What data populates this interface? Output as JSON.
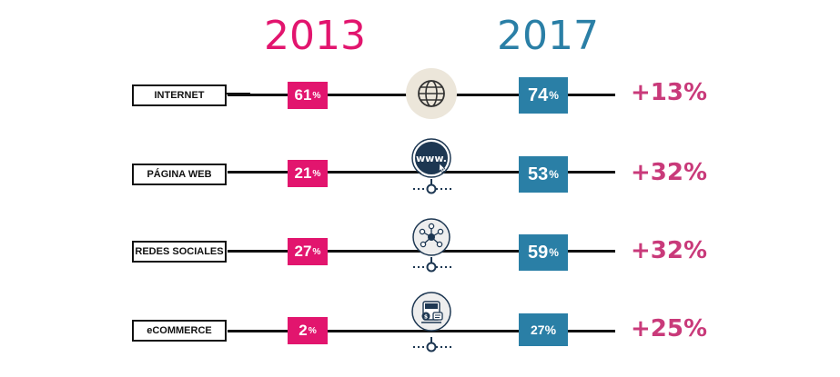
{
  "header": {
    "year_left": "2013",
    "year_right": "2017"
  },
  "colors": {
    "pink": "#e2156e",
    "blue": "#2a7fa6",
    "diff": "#c93a7a"
  },
  "rows": [
    {
      "label": "INTERNET",
      "v2013": "61",
      "v2017": "74",
      "pct_symbol": "%",
      "diff": "+13%",
      "icon": "globe-icon"
    },
    {
      "label": "PÁGINA WEB",
      "v2013": "21",
      "v2017": "53",
      "pct_symbol": "%",
      "diff": "+32%",
      "icon": "www-icon",
      "icon_text": "www."
    },
    {
      "label": "REDES SOCIALES",
      "v2013": "27",
      "v2017": "59",
      "pct_symbol": "%",
      "diff": "+32%",
      "icon": "network-icon"
    },
    {
      "label": "eCOMMERCE",
      "v2013": "2",
      "v2017": "27",
      "pct_symbol": "%",
      "diff": "+25%",
      "icon": "ecommerce-icon"
    }
  ]
}
